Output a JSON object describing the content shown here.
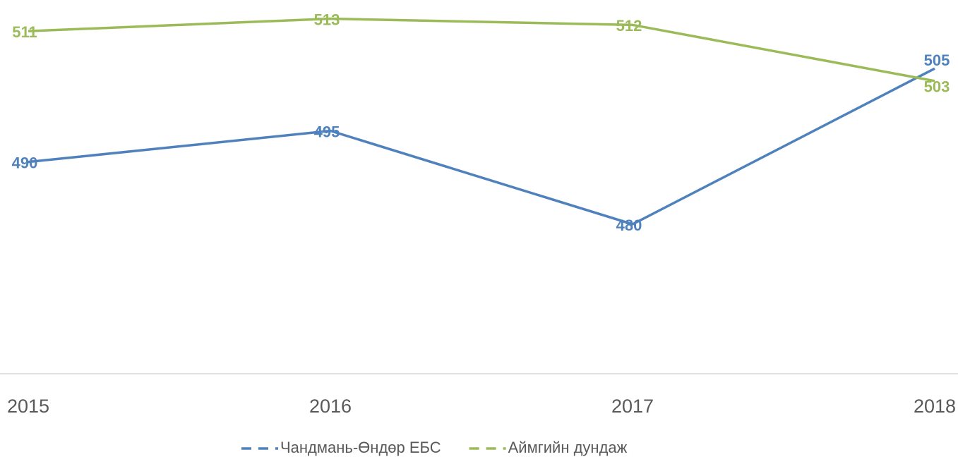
{
  "chart_data": {
    "type": "line",
    "categories": [
      "2015",
      "2016",
      "2017",
      "2018"
    ],
    "series": [
      {
        "name": "Чандмань-Өндөр ЕБС",
        "color": "#4f81bd",
        "values": [
          490,
          495,
          480,
          505
        ]
      },
      {
        "name": "Аймгийн дундаж",
        "color": "#9bbb59",
        "values": [
          511,
          513,
          512,
          503
        ]
      }
    ],
    "ylim": [
      456,
      516
    ]
  }
}
